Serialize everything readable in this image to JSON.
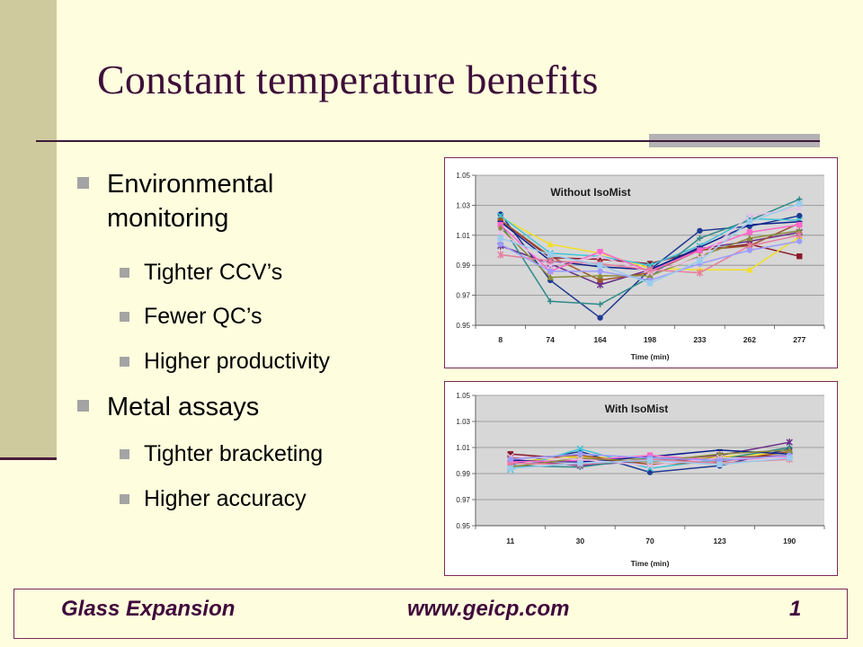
{
  "slide": {
    "title": "Constant temperature benefits",
    "bullets": [
      {
        "label": "Environmental monitoring",
        "children": [
          "Tighter CCV’s",
          "Fewer QC’s",
          "Higher productivity"
        ]
      },
      {
        "label": "Metal assays",
        "children": [
          "Tighter bracketing",
          "Higher accuracy"
        ]
      }
    ],
    "footer": {
      "company": "Glass Expansion",
      "url": "www.geicp.com",
      "page": "1"
    }
  },
  "colors": {
    "background": "#fefede",
    "band": "#cfca9d",
    "title": "#3d0e3a",
    "plot_area": "#d7d7d7"
  },
  "chart_data": [
    {
      "type": "line",
      "title": "Without IsoMist",
      "xlabel": "Time (min)",
      "ylabel": "",
      "categories": [
        "8",
        "74",
        "164",
        "198",
        "233",
        "262",
        "277"
      ],
      "ylim": [
        0.95,
        1.05
      ],
      "yticks": [
        "0.95",
        "0.97",
        "0.99",
        "1.01",
        "1.03",
        "1.05"
      ],
      "grid": true,
      "series": [
        {
          "color": "#1f3a93",
          "marker": "circle",
          "values": [
            1.024,
            0.98,
            0.955,
            0.987,
            1.013,
            1.016,
            1.023
          ]
        },
        {
          "color": "#8b1a2b",
          "marker": "square",
          "values": [
            1.02,
            0.995,
            0.994,
            0.991,
            1.0,
            1.004,
            0.996
          ]
        },
        {
          "color": "#f2e024",
          "marker": "triangle",
          "values": [
            1.022,
            1.004,
            0.998,
            0.988,
            0.987,
            0.987,
            1.009
          ]
        },
        {
          "color": "#3fc4d8",
          "marker": "x",
          "values": [
            1.023,
            0.998,
            0.996,
            0.99,
            1.003,
            1.021,
            1.02
          ]
        },
        {
          "color": "#6a2c8a",
          "marker": "star",
          "values": [
            1.003,
            0.991,
            0.977,
            0.987,
            1.001,
            1.006,
            1.012
          ]
        },
        {
          "color": "#a0522d",
          "marker": "circle",
          "values": [
            1.02,
            0.996,
            0.98,
            0.985,
            1.0,
            1.003,
            1.018
          ]
        },
        {
          "color": "#2f8a8a",
          "marker": "plus",
          "values": [
            1.018,
            0.966,
            0.964,
            0.982,
            1.008,
            1.02,
            1.034
          ]
        },
        {
          "color": "#0b1f8c",
          "marker": "dash",
          "values": [
            1.019,
            0.993,
            0.989,
            0.987,
            1.002,
            1.017,
            1.019
          ]
        },
        {
          "color": "#ff66cc",
          "marker": "square",
          "values": [
            1.017,
            0.986,
            0.999,
            0.986,
            1.0,
            1.012,
            1.017
          ]
        },
        {
          "color": "#8c8c3c",
          "marker": "triangle",
          "values": [
            1.015,
            0.982,
            0.983,
            0.983,
            0.996,
            1.008,
            1.013
          ]
        },
        {
          "color": "#e6c0e6",
          "marker": "x",
          "values": [
            1.012,
            0.99,
            0.996,
            0.985,
            0.995,
            1.023,
            1.028
          ]
        },
        {
          "color": "#e67e9e",
          "marker": "star",
          "values": [
            0.997,
            0.993,
            0.991,
            0.987,
            0.985,
            1.003,
            1.01
          ]
        },
        {
          "color": "#9c9cff",
          "marker": "circle",
          "values": [
            1.004,
            0.986,
            0.986,
            0.98,
            0.991,
            1.0,
            1.006
          ]
        },
        {
          "color": "#99ccee",
          "marker": "square",
          "values": [
            1.008,
            0.997,
            0.99,
            0.978,
            0.993,
            1.019,
            1.031
          ]
        }
      ]
    },
    {
      "type": "line",
      "title": "With IsoMist",
      "xlabel": "Time (min)",
      "ylabel": "",
      "categories": [
        "11",
        "30",
        "70",
        "123",
        "190"
      ],
      "ylim": [
        0.95,
        1.05
      ],
      "yticks": [
        "0.95",
        "0.97",
        "0.99",
        "1.01",
        "1.03",
        "1.05"
      ],
      "grid": true,
      "series": [
        {
          "color": "#1f3a93",
          "marker": "circle",
          "values": [
            0.997,
            1.007,
            0.991,
            0.996,
            1.009
          ]
        },
        {
          "color": "#8b1a2b",
          "marker": "square",
          "values": [
            1.005,
            1.001,
            0.999,
            1.002,
            1.004
          ]
        },
        {
          "color": "#f2e024",
          "marker": "triangle",
          "values": [
            0.999,
            1.003,
            1.001,
            1.003,
            1.006
          ]
        },
        {
          "color": "#3fc4d8",
          "marker": "x",
          "values": [
            0.993,
            1.009,
            0.994,
            1.001,
            1.003
          ]
        },
        {
          "color": "#6a2c8a",
          "marker": "star",
          "values": [
            1.001,
            0.996,
            1.0,
            1.004,
            1.014
          ]
        },
        {
          "color": "#a0522d",
          "marker": "circle",
          "values": [
            1.002,
            1.004,
            0.997,
            0.999,
            1.007
          ]
        },
        {
          "color": "#2f8a8a",
          "marker": "plus",
          "values": [
            0.996,
            0.995,
            1.002,
            1.001,
            1.01
          ]
        },
        {
          "color": "#0b1f8c",
          "marker": "dash",
          "values": [
            1.0,
            0.999,
            1.003,
            1.008,
            1.005
          ]
        },
        {
          "color": "#ff66cc",
          "marker": "square",
          "values": [
            0.999,
            1.0,
            1.004,
            1.0,
            1.003
          ]
        },
        {
          "color": "#8c8c3c",
          "marker": "triangle",
          "values": [
            0.995,
            1.002,
            0.999,
            1.005,
            1.008
          ]
        },
        {
          "color": "#e6c0e6",
          "marker": "x",
          "values": [
            1.003,
            1.001,
            0.996,
            1.002,
            1.002
          ]
        },
        {
          "color": "#e67e9e",
          "marker": "star",
          "values": [
            0.998,
            0.997,
            1.001,
            0.998,
            1.001
          ]
        },
        {
          "color": "#9c9cff",
          "marker": "circle",
          "values": [
            1.001,
            1.005,
            1.002,
            1.0,
            1.004
          ]
        },
        {
          "color": "#99ccee",
          "marker": "square",
          "values": [
            0.994,
            0.998,
            1.0,
            0.997,
            1.002
          ]
        }
      ]
    }
  ]
}
